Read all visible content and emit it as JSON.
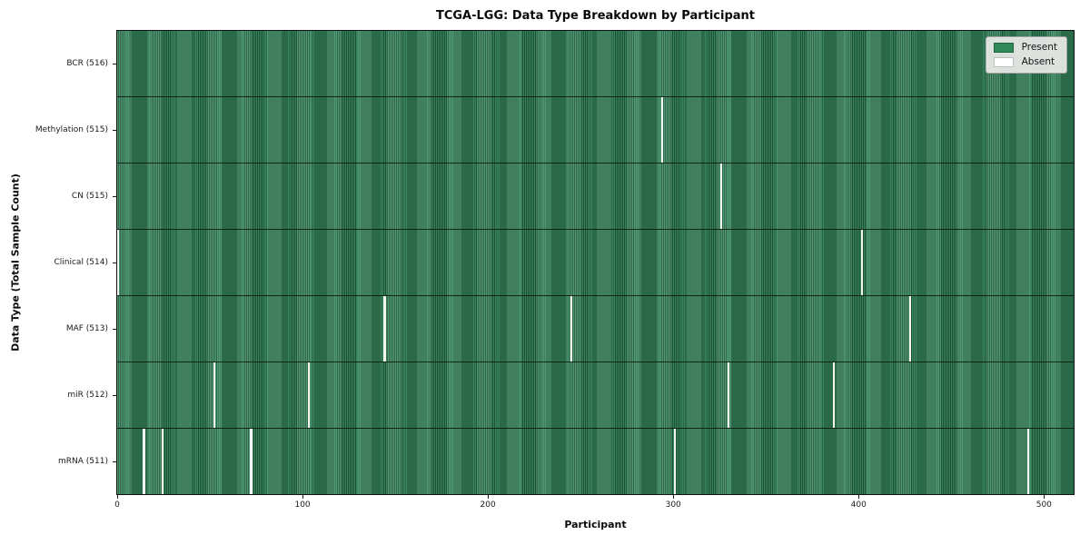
{
  "chart_data": {
    "type": "heatmap",
    "title": "TCGA-LGG: Data Type Breakdown by Participant",
    "xlabel": "Participant",
    "ylabel": "Data Type (Total Sample Count)",
    "x_ticks": [
      0,
      100,
      200,
      300,
      400,
      500
    ],
    "n_participants": 516,
    "xlim": [
      -0.5,
      516.5
    ],
    "grid": false,
    "legend_position": "upper right",
    "colors": {
      "present": "#2e8b57",
      "present_stripe_dark": "#1f5738",
      "absent": "#ffffff",
      "row_separator": "#141414",
      "legend_bg": "#eaeae8",
      "legend_border": "#a3a3a3"
    },
    "legend": [
      {
        "label": "Present",
        "color": "#2e8b57"
      },
      {
        "label": "Absent",
        "color": "#ffffff"
      }
    ],
    "rows": [
      {
        "data_type": "BCR",
        "label": "BCR (516)",
        "present_count": 516,
        "absent_participants": []
      },
      {
        "data_type": "Methylation",
        "label": "Methylation (515)",
        "present_count": 515,
        "absent_participants": [
          294
        ]
      },
      {
        "data_type": "CN",
        "label": "CN (515)",
        "present_count": 515,
        "absent_participants": [
          326
        ]
      },
      {
        "data_type": "Clinical",
        "label": "Clinical (514)",
        "present_count": 514,
        "absent_participants": [
          0,
          402
        ]
      },
      {
        "data_type": "MAF",
        "label": "MAF (513)",
        "present_count": 513,
        "absent_participants": [
          144,
          245,
          428
        ]
      },
      {
        "data_type": "miR",
        "label": "miR (512)",
        "present_count": 512,
        "absent_participants": [
          52,
          103,
          330,
          387
        ]
      },
      {
        "data_type": "mRNA",
        "label": "mRNA (511)",
        "present_count": 511,
        "absent_participants": [
          14,
          24,
          72,
          301,
          492
        ]
      }
    ]
  }
}
